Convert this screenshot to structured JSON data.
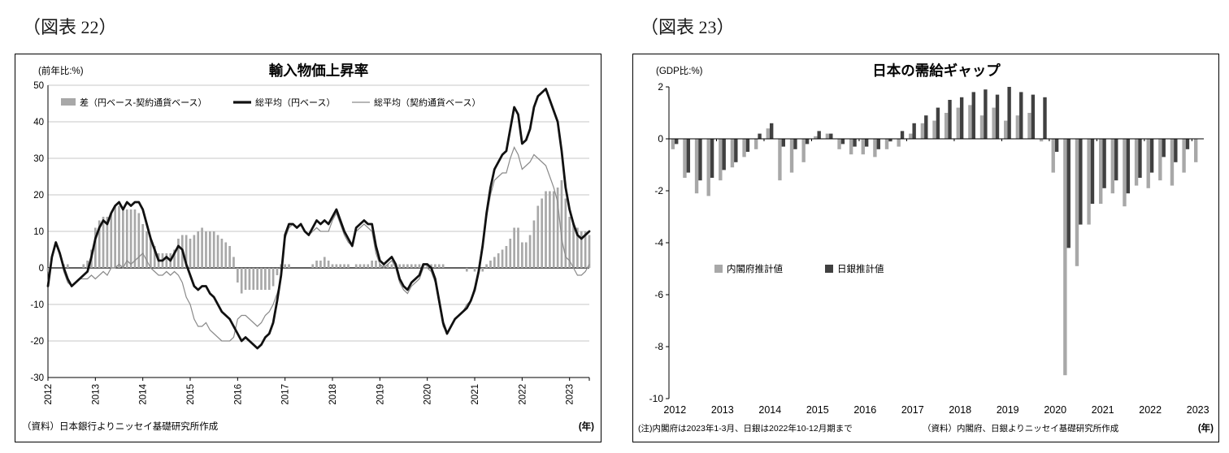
{
  "figures": [
    {
      "label": "（図表 22）"
    },
    {
      "label": "（図表 23）"
    }
  ],
  "chart_data": [
    {
      "type": "bar+line",
      "title": "輸入物価上昇率",
      "y_unit_label": "(前年比:%)",
      "x_unit_label": "(年)",
      "source": "（資料）日本銀行よりニッセイ基礎研究所作成",
      "ylim": [
        -30,
        50
      ],
      "ytick_step": 10,
      "start_year": 2012,
      "frequency": "monthly",
      "years": [
        2012,
        2013,
        2014,
        2015,
        2016,
        2017,
        2018,
        2019,
        2020,
        2021,
        2022,
        2023
      ],
      "legend": [
        {
          "name": "差（円ベース-契約通貨ベース）",
          "kind": "bar-swatch",
          "color": "#a8a8a8"
        },
        {
          "name": "総平均（円ベース）",
          "kind": "thick-line",
          "color": "#111111"
        },
        {
          "name": "総平均（契約通貨ベース）",
          "kind": "thin-line",
          "color": "#8a8a8a"
        }
      ],
      "bar_series_definition": "bar = yen_base minus contract_base",
      "monthly": {
        "yen_base": [
          -5,
          3,
          7,
          4,
          0,
          -3,
          -5,
          -4,
          -3,
          -2,
          -1,
          3,
          8,
          11,
          13,
          12,
          15,
          17,
          18,
          16,
          18,
          17,
          18,
          18,
          16,
          12,
          8,
          5,
          2,
          2,
          3,
          2,
          4,
          6,
          5,
          1,
          -2,
          -5,
          -6,
          -5,
          -5,
          -7,
          -8,
          -10,
          -12,
          -13,
          -14,
          -16,
          -18,
          -20,
          -19,
          -20,
          -21,
          -22,
          -21,
          -19,
          -18,
          -15,
          -9,
          -2,
          9,
          12,
          12,
          11,
          12,
          10,
          9,
          11,
          13,
          12,
          13,
          12,
          14,
          16,
          13,
          10,
          8,
          6,
          11,
          12,
          13,
          12,
          12,
          6,
          2,
          1,
          2,
          3,
          1,
          -3,
          -5,
          -6,
          -4,
          -3,
          -2,
          1,
          1,
          0,
          -3,
          -9,
          -15,
          -18,
          -16,
          -14,
          -13,
          -12,
          -11,
          -9,
          -6,
          -1,
          6,
          15,
          22,
          27,
          29,
          31,
          32,
          38,
          44,
          42,
          34,
          35,
          38,
          44,
          47,
          48,
          49,
          46,
          43,
          40,
          32,
          22,
          16,
          12,
          9,
          8,
          9,
          10
        ],
        "contract_base": [
          -4,
          3,
          7,
          4,
          -1,
          -4,
          -5,
          -4,
          -3,
          -3,
          -3,
          -2,
          -3,
          -2,
          -1,
          -2,
          0,
          0,
          1,
          0,
          2,
          1,
          2,
          3,
          4,
          2,
          0,
          -1,
          -2,
          -2,
          -1,
          -2,
          -1,
          -2,
          -4,
          -8,
          -10,
          -14,
          -16,
          -16,
          -15,
          -17,
          -18,
          -19,
          -20,
          -20,
          -20,
          -19,
          -14,
          -13,
          -13,
          -14,
          -15,
          -16,
          -15,
          -13,
          -12,
          -10,
          -7,
          -3,
          8,
          11,
          12,
          11,
          12,
          10,
          9,
          10,
          11,
          10,
          10,
          10,
          13,
          15,
          12,
          9,
          7,
          6,
          10,
          11,
          12,
          11,
          10,
          4,
          1,
          0,
          1,
          2,
          0,
          -4,
          -6,
          -7,
          -5,
          -4,
          -3,
          0,
          0,
          -1,
          -4,
          -10,
          -16,
          -18,
          -16,
          -14,
          -13,
          -12,
          -10,
          -9,
          -5,
          0,
          7,
          14,
          20,
          24,
          25,
          26,
          26,
          30,
          33,
          31,
          27,
          28,
          29,
          31,
          30,
          29,
          28,
          25,
          22,
          18,
          8,
          3,
          2,
          0,
          -2,
          -2,
          -1,
          1
        ]
      }
    },
    {
      "type": "bar",
      "title": "日本の需給ギャップ",
      "y_unit_label": "(GDP比:%)",
      "x_unit_label": "(年)",
      "note": "(注)内閣府は2023年1-3月、日銀は2022年10-12月期まで",
      "source": "（資料）内閣府、日銀よりニッセイ基礎研究所作成",
      "ylim": [
        -10,
        2
      ],
      "ytick_step": 2,
      "start_year": 2012,
      "frequency": "quarterly",
      "years": [
        2012,
        2013,
        2014,
        2015,
        2016,
        2017,
        2018,
        2019,
        2020,
        2021,
        2022,
        2023
      ],
      "series": [
        {
          "name": "内閣府推計値",
          "color": "#a8a8a8",
          "quarterly_values": [
            -0.4,
            -1.5,
            -2.1,
            -2.2,
            -1.6,
            -1.1,
            -0.7,
            -0.4,
            0.4,
            -1.6,
            -1.3,
            -0.9,
            0.1,
            0.2,
            -0.4,
            -0.6,
            -0.6,
            -0.7,
            -0.4,
            -0.3,
            0.2,
            0.6,
            0.7,
            1.0,
            1.2,
            1.3,
            0.9,
            1.2,
            0.7,
            0.9,
            1.0,
            -0.1,
            -1.3,
            -9.1,
            -4.9,
            -3.3,
            -2.5,
            -2.1,
            -2.6,
            -1.8,
            -1.9,
            -1.6,
            -1.8,
            -1.3,
            -0.9
          ]
        },
        {
          "name": "日銀推計値",
          "color": "#404040",
          "quarterly_values": [
            -0.2,
            -1.3,
            -1.6,
            -1.5,
            -1.2,
            -0.9,
            -0.5,
            0.2,
            0.6,
            -0.3,
            -0.4,
            -0.2,
            0.3,
            0.2,
            -0.2,
            -0.3,
            -0.3,
            -0.4,
            -0.1,
            0.3,
            0.6,
            0.9,
            1.2,
            1.5,
            1.6,
            1.8,
            1.9,
            1.7,
            2.0,
            1.8,
            1.7,
            1.6,
            -0.5,
            -4.2,
            -3.3,
            -2.5,
            -1.9,
            -1.6,
            -2.1,
            -1.5,
            -1.3,
            -0.7,
            -0.9,
            -0.4
          ]
        }
      ]
    }
  ]
}
